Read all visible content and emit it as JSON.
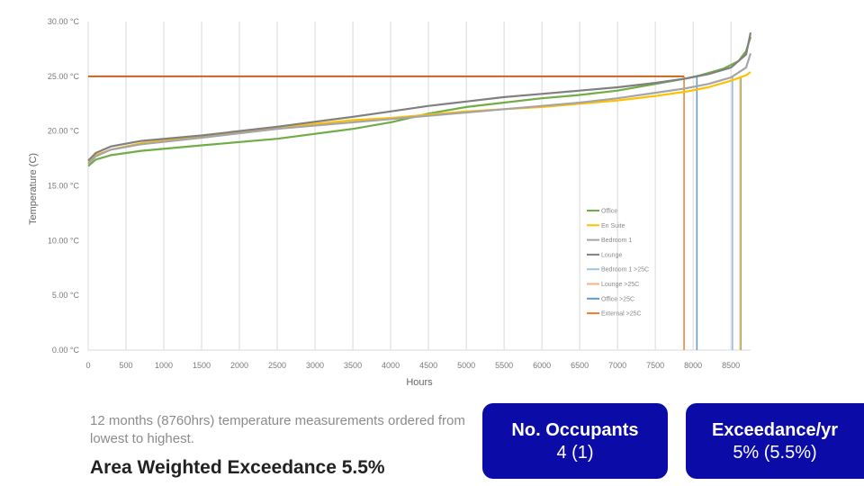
{
  "chart_data": {
    "type": "line",
    "ylabel": "Temperature (C)",
    "xlabel": "Hours",
    "xlim": [
      0,
      8760
    ],
    "ylim": [
      0,
      30
    ],
    "x_ticks": [
      0,
      500,
      1000,
      1500,
      2000,
      2500,
      3000,
      3500,
      4000,
      4500,
      5000,
      5500,
      6000,
      6500,
      7000,
      7500,
      8000,
      8500
    ],
    "x_tick_labels": [
      "0",
      "500",
      "1000",
      "1500",
      "2000",
      "2500",
      "3000",
      "3500",
      "4000",
      "4500",
      "5000",
      "5500",
      "6000",
      "6500",
      "7000",
      "7500",
      "8000",
      "8500"
    ],
    "y_ticks": [
      0,
      5,
      10,
      15,
      20,
      25,
      30
    ],
    "y_tick_labels": [
      "0.00 °C",
      "5.00 °C",
      "10.00 °C",
      "15.00 °C",
      "20.00 °C",
      "25.00 °C",
      "30.00 °C"
    ],
    "grid": "vertical",
    "legend_position": "center-right",
    "series": [
      {
        "name": "Office",
        "color": "#70ad47",
        "kind": "curve",
        "x": [
          0,
          100,
          300,
          700,
          1500,
          2500,
          3500,
          4000,
          4500,
          5000,
          5500,
          6000,
          6500,
          7000,
          7500,
          7900,
          8100,
          8400,
          8600,
          8700,
          8760
        ],
        "y": [
          16.8,
          17.4,
          17.8,
          18.2,
          18.7,
          19.3,
          20.2,
          20.8,
          21.6,
          22.2,
          22.6,
          23.0,
          23.3,
          23.7,
          24.3,
          24.8,
          25.1,
          25.7,
          26.4,
          27.3,
          28.6
        ]
      },
      {
        "name": "En Suite",
        "color": "#ffc000",
        "kind": "curve",
        "x": [
          0,
          100,
          300,
          700,
          1500,
          2500,
          3500,
          4000,
          4500,
          5000,
          5500,
          6000,
          6500,
          7000,
          7500,
          7900,
          8200,
          8500,
          8700,
          8760
        ],
        "y": [
          17.2,
          17.8,
          18.3,
          18.9,
          19.5,
          20.3,
          21.0,
          21.2,
          21.5,
          21.8,
          22.0,
          22.2,
          22.5,
          22.8,
          23.2,
          23.6,
          24.0,
          24.6,
          25.1,
          25.4
        ]
      },
      {
        "name": "Bedroom 1",
        "color": "#a5a5a5",
        "kind": "curve",
        "x": [
          0,
          100,
          300,
          700,
          1500,
          2500,
          3500,
          4000,
          4500,
          5000,
          5500,
          6000,
          6500,
          7000,
          7500,
          7900,
          8200,
          8500,
          8700,
          8760
        ],
        "y": [
          17.0,
          17.7,
          18.3,
          18.8,
          19.4,
          20.2,
          20.8,
          21.1,
          21.4,
          21.7,
          22.0,
          22.3,
          22.6,
          23.0,
          23.5,
          23.9,
          24.3,
          24.9,
          25.8,
          27.1
        ]
      },
      {
        "name": "Lounge",
        "color": "#808080",
        "kind": "curve",
        "x": [
          0,
          100,
          300,
          700,
          1500,
          2500,
          3500,
          4000,
          4500,
          5000,
          5500,
          6000,
          6500,
          7000,
          7500,
          7900,
          8200,
          8500,
          8700,
          8760
        ],
        "y": [
          17.3,
          18.0,
          18.6,
          19.1,
          19.6,
          20.4,
          21.3,
          21.8,
          22.3,
          22.7,
          23.1,
          23.4,
          23.7,
          24.0,
          24.4,
          24.8,
          25.2,
          25.8,
          27.0,
          29.0
        ]
      },
      {
        "name": "Bedroom 1 >25C",
        "color": "#9dc3e6",
        "kind": "vline",
        "x": 8520
      },
      {
        "name": "Lounge >25C",
        "color": "#f4b183",
        "kind": "vline",
        "x": 8620
      },
      {
        "name": "Office >25C",
        "color": "#5b9bd5",
        "kind": "vline",
        "x": 8050
      },
      {
        "name": "External >25C",
        "color": "#ed7d31",
        "kind": "vline",
        "x": 7880
      }
    ],
    "threshold": {
      "y": 25,
      "x_end": 7880,
      "color": "#c55a11"
    },
    "extra_lines": [
      {
        "x": 8520,
        "color": "#7f7f7f"
      },
      {
        "x": 8630,
        "color": "#70ad47"
      }
    ]
  },
  "text": {
    "caption": "12 months (8760hrs) temperature measurements ordered from lowest to highest.",
    "headline": "Area Weighted Exceedance 5.5%"
  },
  "boxes": {
    "occupants": {
      "title": "No. Occupants",
      "value": "4 (1)"
    },
    "exceedance": {
      "title": "Exceedance/yr",
      "value": "5% (5.5%)"
    }
  },
  "colors": {
    "box_blue": "#0b0ba8"
  }
}
